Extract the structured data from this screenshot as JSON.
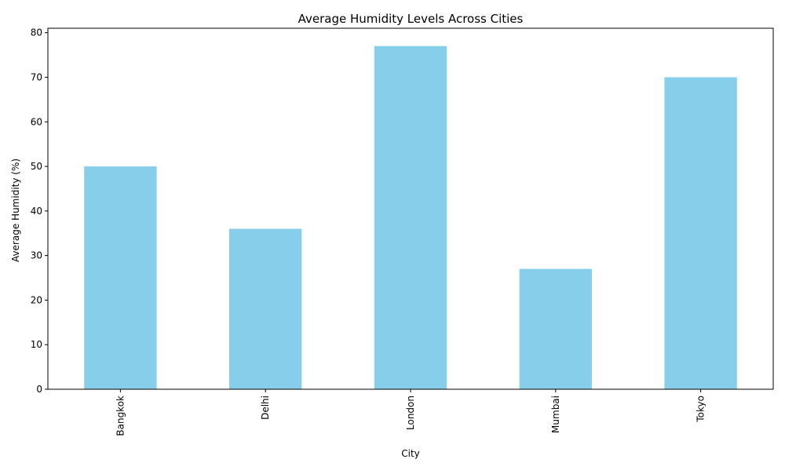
{
  "chart_data": {
    "type": "bar",
    "title": "Average Humidity Levels Across Cities",
    "xlabel": "City",
    "ylabel": "Average Humidity (%)",
    "categories": [
      "Bangkok",
      "Delhi",
      "London",
      "Mumbai",
      "Tokyo"
    ],
    "values": [
      50,
      36,
      77,
      27,
      70
    ],
    "ylim": [
      0,
      81
    ],
    "yticks": [
      0,
      10,
      20,
      30,
      40,
      50,
      60,
      70,
      80
    ],
    "bar_color": "#87ceeb",
    "grid": false,
    "legend": false,
    "xtick_rotation": "vertical"
  }
}
